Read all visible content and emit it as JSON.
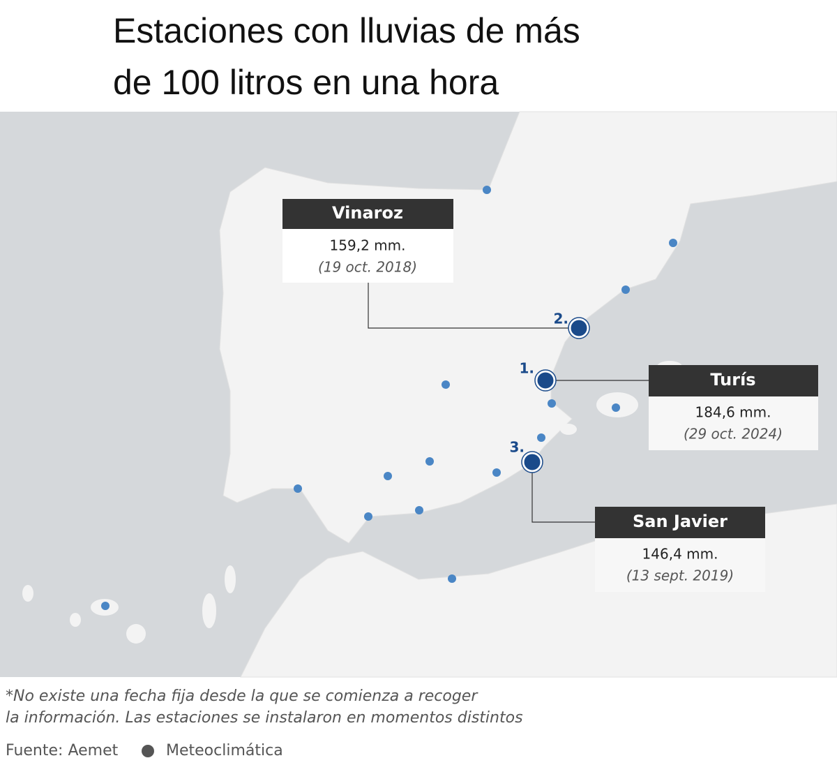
{
  "header": {
    "title_lines": [
      "Estaciones con lluvias de más",
      "de 100 litros en una hora"
    ]
  },
  "callouts": [
    {
      "rank": "1.",
      "station": "Turís",
      "amount": "184,6 mm.",
      "date": "(29 oct. 2024)"
    },
    {
      "rank": "2.",
      "station": "Vinaroz",
      "amount": "159,2 mm.",
      "date": "(19 oct. 2018)"
    },
    {
      "rank": "3.",
      "station": "San Javier",
      "amount": "146,4 mm.",
      "date": "(13 sept. 2019)"
    }
  ],
  "footer": {
    "note_lines": [
      "*No existe una fecha fija desde la que se comienza a recoger",
      "la información. Las estaciones se instalaron en momentos distintos"
    ],
    "source": [
      "Fuente: Aemet",
      "Meteoclimática"
    ]
  }
}
